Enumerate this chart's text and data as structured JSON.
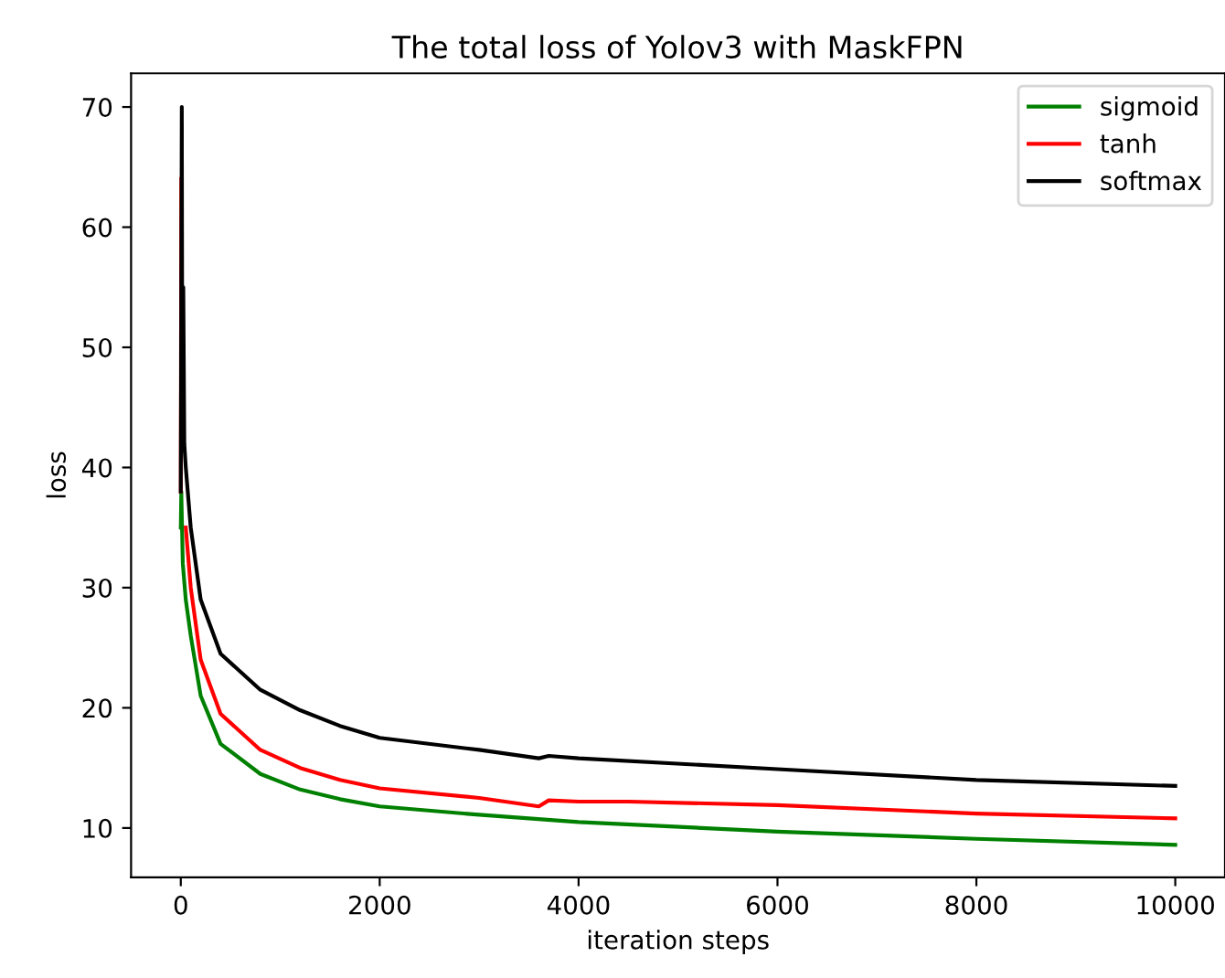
{
  "chart_data": {
    "type": "line",
    "title": "The total loss of Yolov3 with MaskFPN",
    "xlabel": "iteration steps",
    "ylabel": "loss",
    "xlim": [
      -500,
      10500
    ],
    "ylim": [
      5.9,
      72.8
    ],
    "xticks": [
      0,
      2000,
      4000,
      6000,
      8000,
      10000
    ],
    "yticks": [
      10,
      20,
      30,
      40,
      50,
      60,
      70
    ],
    "legend": "top right",
    "grid": false,
    "series": [
      {
        "name": "sigmoid",
        "color": "#008000",
        "x": [
          0,
          5,
          20,
          50,
          100,
          200,
          400,
          800,
          1200,
          1600,
          2000,
          3000,
          4000,
          6000,
          8000,
          10000
        ],
        "values": [
          35,
          38,
          32,
          29,
          26,
          21,
          17,
          14.5,
          13.2,
          12.4,
          11.8,
          11.1,
          10.5,
          9.7,
          9.1,
          8.6
        ]
      },
      {
        "name": "tanh",
        "color": "#ff0000",
        "x": [
          0,
          5,
          20,
          50,
          100,
          200,
          400,
          800,
          1200,
          1600,
          2000,
          3000,
          3600,
          3700,
          4000,
          4500,
          6000,
          8000,
          10000
        ],
        "values": [
          38,
          64,
          null,
          35,
          30,
          24,
          19.5,
          16.5,
          15,
          14,
          13.3,
          12.5,
          11.8,
          12.3,
          12.2,
          12.2,
          11.9,
          11.2,
          10.8
        ]
      },
      {
        "name": "softmax",
        "color": "#000000",
        "x": [
          0,
          10,
          15,
          25,
          35,
          50,
          100,
          200,
          400,
          800,
          1200,
          1600,
          2000,
          3000,
          3600,
          3700,
          4000,
          6000,
          8000,
          10000
        ],
        "values": [
          38,
          70,
          45,
          55,
          42,
          40,
          35,
          29,
          24.5,
          21.5,
          19.8,
          18.5,
          17.5,
          16.5,
          15.8,
          16.0,
          15.8,
          14.9,
          14.0,
          13.5
        ]
      }
    ]
  }
}
